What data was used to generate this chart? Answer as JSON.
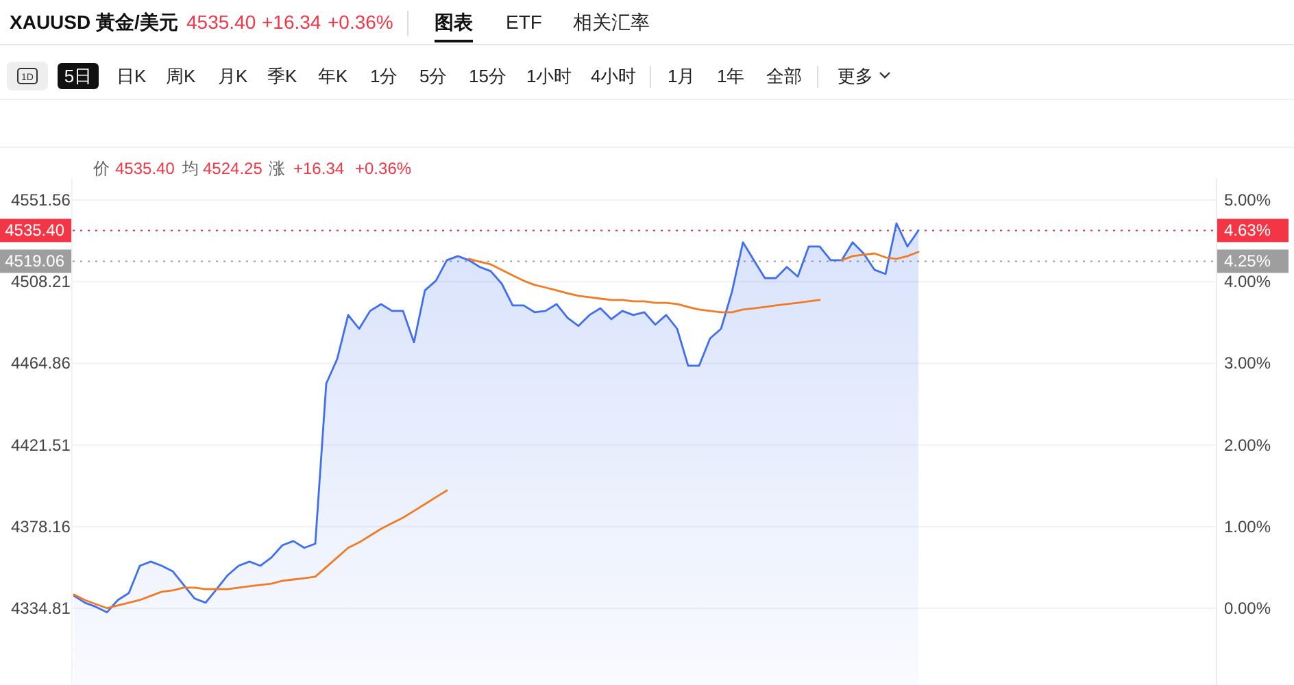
{
  "chart_data": {
    "type": "area",
    "title": "XAUUSD 黃金/美元",
    "annotations": [
      "4535.40",
      "+16.34",
      "+0.36%",
      "图表",
      "ETF",
      "相关汇率",
      "1D",
      "5日",
      "日K",
      "周K",
      "月K",
      "季K",
      "年K",
      "1分",
      "5分",
      "15分",
      "1小时",
      "4小时",
      "1月",
      "1年",
      "全部",
      "更多",
      "价",
      "4535.40",
      "均",
      "4524.25",
      "涨",
      "+16.34",
      "+0.36%",
      "4.63%",
      "4.25%"
    ],
    "categories": [
      null,
      null,
      null,
      null,
      null,
      null,
      null,
      null,
      null,
      null,
      null,
      null,
      null,
      null,
      null,
      null,
      null,
      null,
      null,
      null,
      null,
      null,
      null,
      null,
      null,
      null,
      null,
      null,
      null,
      null,
      null,
      null,
      null,
      null,
      null,
      null,
      null,
      null,
      null,
      null,
      null,
      null,
      null,
      null,
      null,
      null,
      null,
      null,
      null,
      null,
      null,
      null,
      null,
      null,
      null,
      null,
      null,
      null,
      null,
      null,
      null,
      null,
      null,
      null,
      null,
      null,
      null,
      null,
      null,
      null,
      null,
      null,
      null,
      null,
      null,
      null,
      null,
      null,
      null,
      null,
      null,
      null,
      null,
      null,
      null,
      null,
      null,
      null,
      null,
      null,
      null,
      null,
      null,
      null,
      null,
      null,
      null,
      null,
      null,
      null,
      null,
      null,
      null,
      null,
      null
    ],
    "series": [
      {
        "color": "#3f6ef0",
        "values": [
          4341.4,
          4337.8,
          4335.6,
          4332.7,
          4339.2,
          4342.9,
          4357.4,
          4359.6,
          4357.4,
          4354.5,
          4347.2,
          4340.0,
          4337.8,
          4345.0,
          4352.3,
          4357.4,
          4359.6,
          4357.4,
          4361.8,
          4368.3,
          4370.5,
          4366.9,
          4369.1,
          4454.1,
          4467.2,
          4490.5,
          4483.2,
          4492.7,
          4496.3,
          4492.7,
          4492.7,
          4476.0,
          4503.6,
          4508.7,
          4519.6,
          4521.8,
          4519.6,
          4516.0,
          4513.8,
          4507.2,
          4495.6,
          4495.6,
          4492.0,
          4492.7,
          4496.3,
          4489.1,
          4484.7,
          4490.5,
          4494.1,
          4488.3,
          4492.7,
          4490.5,
          4492.0,
          4485.4,
          4490.5,
          4483.2,
          4463.6,
          4463.6,
          4478.1,
          4483.2,
          4502.9,
          4529.1,
          4519.6,
          4510.1,
          4510.1,
          4516.0,
          4510.9,
          4526.9,
          4526.9,
          4519.6,
          4519.6,
          4529.1,
          4523.2,
          4514.5,
          4512.3,
          4539.2,
          4526.9,
          4535.4,
          null,
          null,
          null,
          null,
          null,
          null,
          null,
          null,
          null,
          null,
          null,
          null,
          null,
          null,
          null,
          null,
          null,
          null,
          null,
          null,
          null,
          null,
          null,
          null,
          null,
          null,
          null
        ]
      },
      {
        "type": "line",
        "color": "#f07b22",
        "values": [
          4342.1,
          4339.2,
          4337.0,
          4334.9,
          4336.3,
          4337.8,
          4339.2,
          4341.4,
          4343.6,
          4344.3,
          4345.8,
          4345.8,
          4345.0,
          4345.0,
          4345.0,
          4345.8,
          4346.5,
          4347.2,
          4347.9,
          4349.4,
          4350.1,
          4350.8,
          4351.6,
          4356.7,
          4361.8,
          4366.9,
          4369.8,
          4373.4,
          4377.0,
          4380.0,
          4382.9,
          4386.5,
          4390.1,
          4393.8,
          4397.4,
          null,
          4520.3,
          4518.8,
          4517.4,
          4514.5,
          4511.6,
          4508.7,
          4506.5,
          4505.1,
          4503.6,
          4502.1,
          4500.7,
          4500.0,
          4499.2,
          4498.5,
          4498.5,
          4497.8,
          4497.8,
          4497.0,
          4497.0,
          4496.3,
          4494.8,
          4493.4,
          4492.7,
          4492.0,
          4492.0,
          4493.4,
          4494.1,
          4494.8,
          4495.6,
          4496.3,
          4497.0,
          4497.8,
          4498.5,
          null,
          4519.6,
          4521.8,
          4522.5,
          4523.2,
          4521.1,
          4520.3,
          4521.8,
          4524.0,
          null,
          null,
          null,
          null,
          null,
          null,
          null,
          null,
          null,
          null,
          null,
          null,
          null,
          null,
          null,
          null,
          null,
          null,
          null,
          null,
          null,
          null,
          null,
          null,
          null,
          null,
          null
        ]
      }
    ],
    "ylim": [
      4294.1,
      4563.2
    ],
    "yticks": [
      4334.81,
      4378.16,
      4421.51,
      4464.86,
      4508.21,
      4551.56
    ],
    "y2lim": [
      -0.94,
      5.27
    ],
    "y2ticks": [
      {
        "value": 0,
        "label": "0.00%"
      },
      {
        "value": 1,
        "label": "1.00%"
      },
      {
        "value": 2,
        "label": "2.00%"
      },
      {
        "value": 3,
        "label": "3.00%"
      },
      {
        "value": 4,
        "label": "4.00%"
      },
      {
        "value": 5,
        "label": "5.00%"
      }
    ],
    "ref_lines": [
      {
        "axis": "y",
        "value": 4535.4,
        "label": "4535.40",
        "color": "#f23645",
        "line_style": "dotted"
      },
      {
        "axis": "y",
        "value": 4519.06,
        "label": "4519.06",
        "color": "#9e9e9e",
        "line_style": "dotted"
      }
    ],
    "grid": "y"
  }
}
